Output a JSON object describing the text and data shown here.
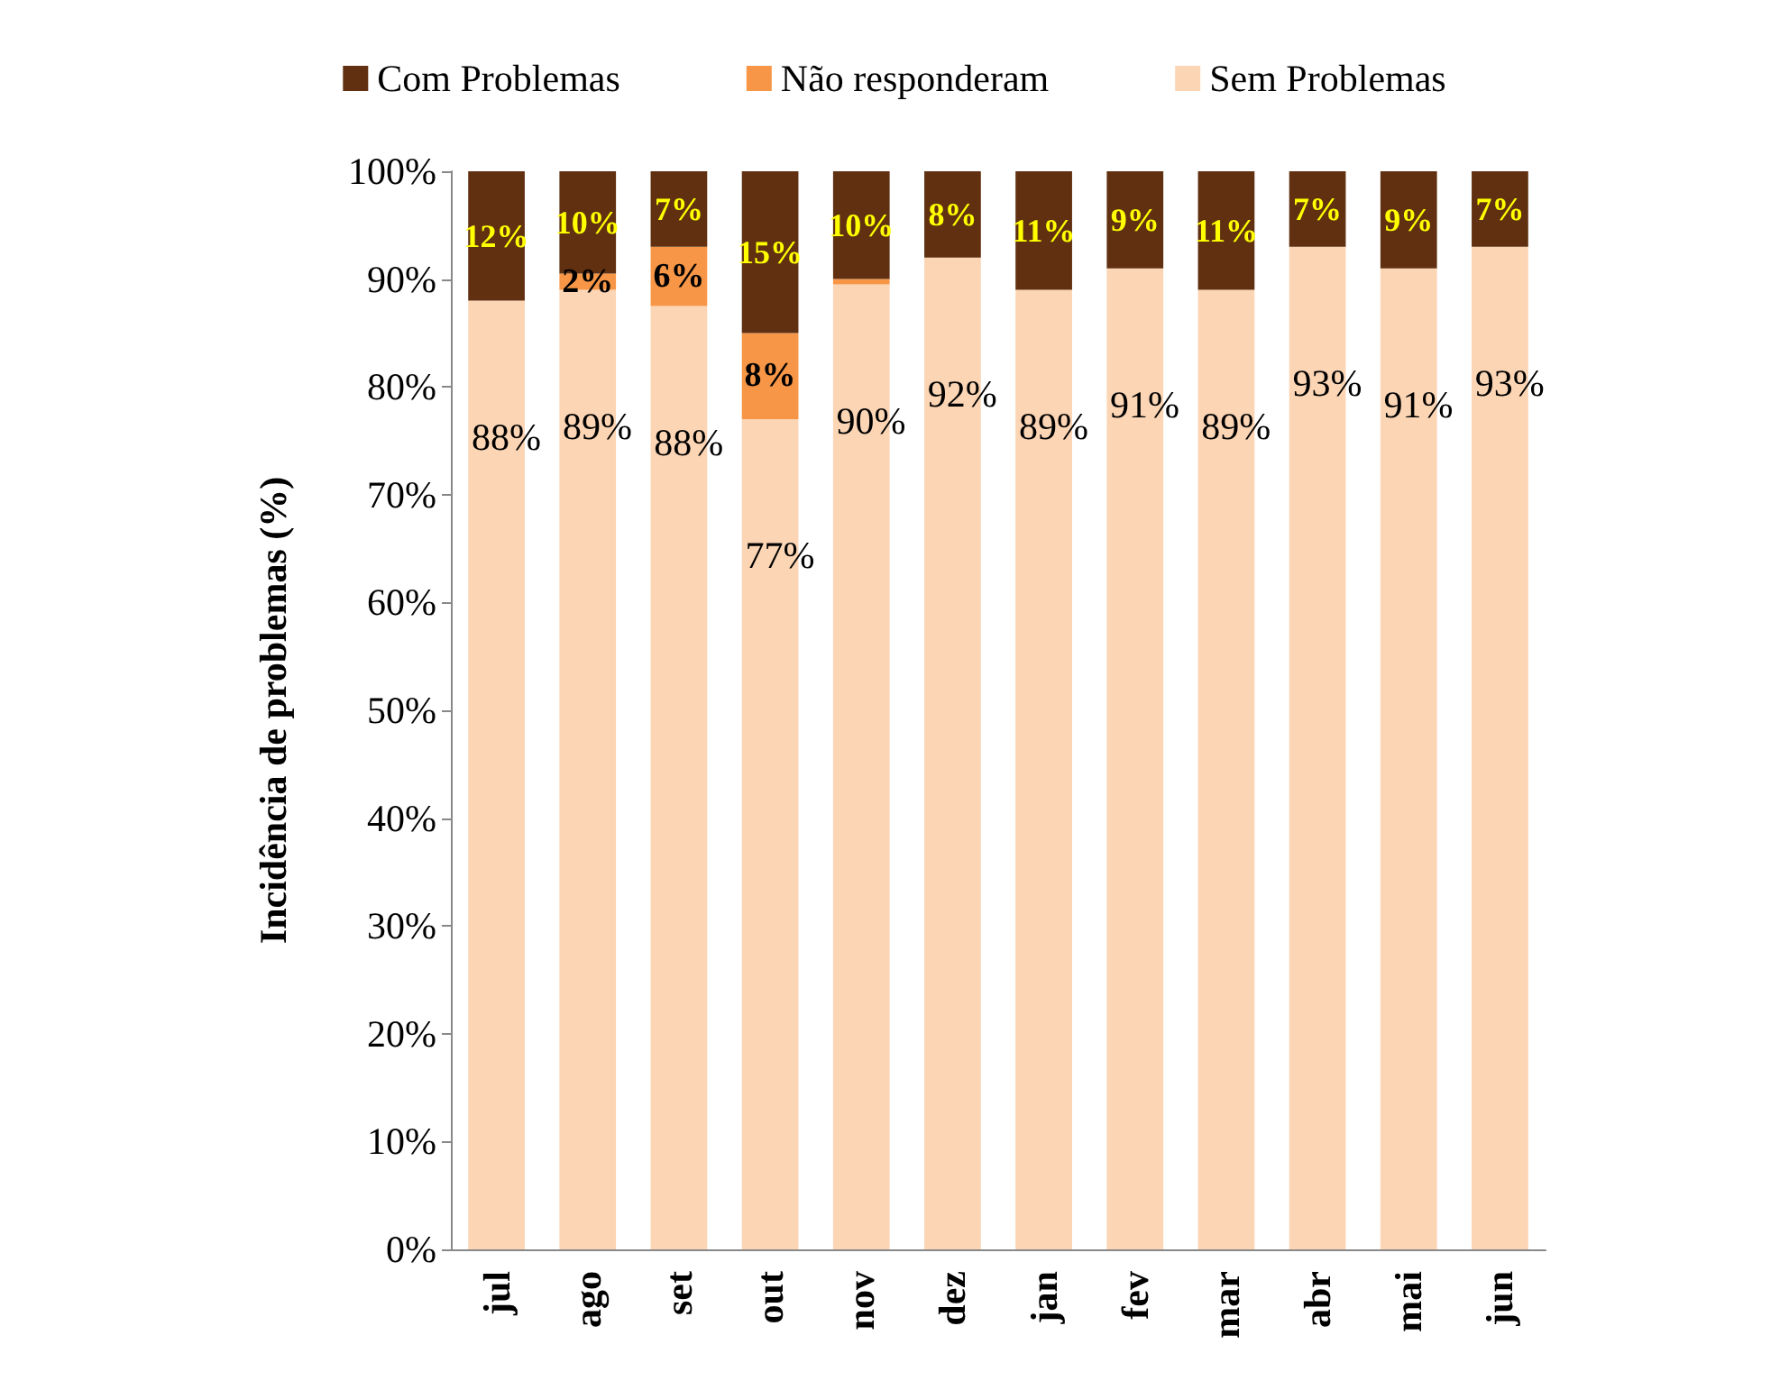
{
  "chart_data": {
    "type": "bar",
    "stacked": true,
    "ylabel": "Incidência de problemas (%)",
    "categories": [
      "jul",
      "ago",
      "set",
      "out",
      "nov",
      "dez",
      "jan",
      "fev",
      "mar",
      "abr",
      "mai",
      "jun"
    ],
    "series": [
      {
        "name": "Sem Problemas",
        "color": "#fcd5b4",
        "values": [
          88,
          89,
          87.5,
          77,
          89.5,
          92,
          89,
          91,
          89,
          93,
          91,
          93
        ],
        "value_labels": [
          "88%",
          "89%",
          "88%",
          "77%",
          "90%",
          "92%",
          "89%",
          "91%",
          "89%",
          "93%",
          "91%",
          "93%"
        ]
      },
      {
        "name": "Não responderam",
        "color": "#f79646",
        "values": [
          null,
          1.5,
          5.5,
          8,
          0.5,
          null,
          null,
          null,
          null,
          null,
          null,
          null
        ],
        "value_labels": [
          null,
          "2%",
          "6%",
          "8%",
          null,
          null,
          null,
          null,
          null,
          null,
          null,
          null
        ]
      },
      {
        "name": "Com Problemas",
        "color": "#603010",
        "values": [
          12,
          9.5,
          7,
          15,
          10,
          8,
          11,
          9,
          11,
          7,
          9,
          7
        ],
        "value_labels": [
          "12%",
          "10%",
          "7%",
          "15%",
          "10%",
          "8%",
          "11%",
          "9%",
          "11%",
          "7%",
          "9%",
          "7%"
        ]
      }
    ],
    "ylim": [
      0,
      100
    ],
    "yticks": [
      {
        "value": 0,
        "label": "0%"
      },
      {
        "value": 10,
        "label": "10%"
      },
      {
        "value": 20,
        "label": "20%"
      },
      {
        "value": 30,
        "label": "30%"
      },
      {
        "value": 40,
        "label": "40%"
      },
      {
        "value": 50,
        "label": "50%"
      },
      {
        "value": 60,
        "label": "60%"
      },
      {
        "value": 70,
        "label": "70%"
      },
      {
        "value": 80,
        "label": "80%"
      },
      {
        "value": 90,
        "label": "90%"
      },
      {
        "value": 100,
        "label": "100%"
      }
    ],
    "grid": false,
    "legend": "top"
  }
}
